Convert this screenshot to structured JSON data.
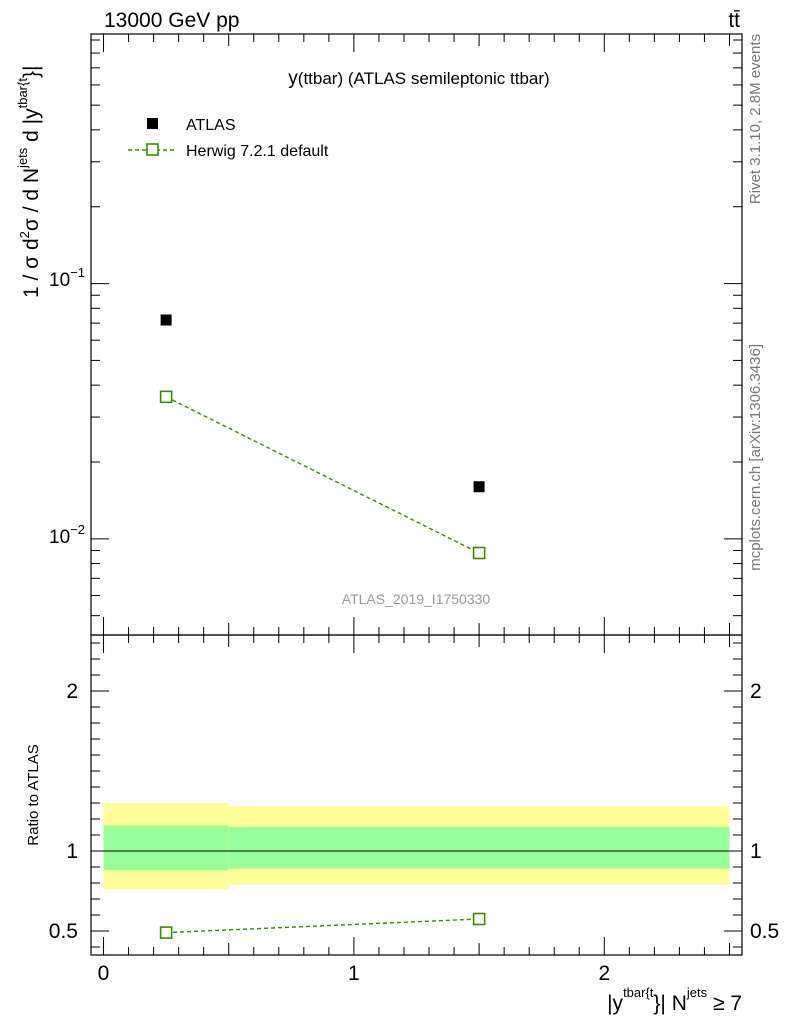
{
  "header": {
    "energy_label": "13000 GeV pp",
    "process_label": "tt̄"
  },
  "side_labels": {
    "rivet": "Rivet 3.1.10,  2.8M events",
    "mcplots": "mcplots.cern.ch [arXiv:1306.3436]"
  },
  "analysis_id": "ATLAS_2019_I1750330",
  "colors": {
    "data_marker": "#000000",
    "mc_line": "#3a8a00",
    "band_inner": "#99ff99",
    "band_outer": "#ffff99",
    "watermark": "#999999"
  },
  "chart_data": [
    {
      "type": "scatter",
      "panel": "main",
      "title": "y(ttbar) (ATLAS semileptonic ttbar)",
      "title_main": "y",
      "title_rest": "(ttbar) (ATLAS semileptonic ttbar)",
      "ylabel": "1 / σ d²σ / d Nʲᵉᵗˢ d |yᵗᵇᵃʳ⁽ᵗ⁾|",
      "yscale": "log",
      "ylim": [
        0.0042,
        0.95
      ],
      "xlim": [
        -0.05,
        2.55
      ],
      "ytick_labels": [
        {
          "base": "10",
          "exp": "−1",
          "value": 0.1
        },
        {
          "base": "10",
          "exp": "−2",
          "value": 0.01
        }
      ],
      "series": [
        {
          "name": "ATLAS",
          "marker": "filled-square",
          "x": [
            0.25,
            1.5
          ],
          "y": [
            0.072,
            0.016
          ]
        },
        {
          "name": "Herwig 7.2.1 default",
          "marker": "open-square",
          "line": "dashed",
          "x": [
            0.25,
            1.5
          ],
          "y": [
            0.036,
            0.0088
          ]
        }
      ],
      "legend": "top-left"
    },
    {
      "type": "scatter",
      "panel": "ratio",
      "ylabel": "Ratio to ATLAS",
      "ylim": [
        0.35,
        2.35
      ],
      "xlim": [
        -0.05,
        2.55
      ],
      "yticks": [
        0.5,
        1,
        2
      ],
      "ytick_labels": [
        "0.5",
        "1",
        "2"
      ],
      "xticks": [
        0,
        1,
        2
      ],
      "xtick_labels": [
        "0",
        "1",
        "2"
      ],
      "xlabel": "|yᵗᵇᵃʳ⁽ᵗ⁾| Nʲᵉᵗˢ ≥ 7",
      "bands": [
        {
          "x0": 0,
          "x1": 0.5,
          "inner": [
            0.88,
            1.16
          ],
          "outer": [
            0.76,
            1.3
          ]
        },
        {
          "x0": 0.5,
          "x1": 2.5,
          "inner": [
            0.89,
            1.15
          ],
          "outer": [
            0.79,
            1.28
          ]
        }
      ],
      "reference_line": 1,
      "series": [
        {
          "name": "Herwig 7.2.1 default",
          "marker": "open-square",
          "line": "dashed",
          "x": [
            0.25,
            1.5
          ],
          "y": [
            0.49,
            0.575
          ]
        }
      ]
    }
  ]
}
